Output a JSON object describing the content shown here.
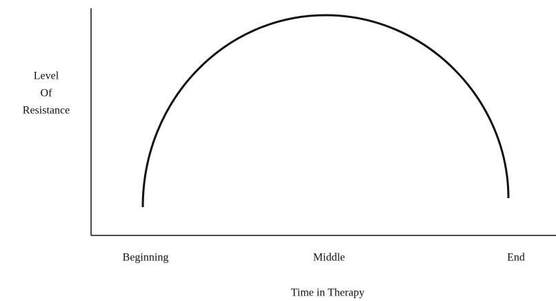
{
  "y_axis_label": [
    "Level",
    "Of",
    "Resistance"
  ],
  "x_categories": [
    "Beginning",
    "Middle",
    "End"
  ],
  "x_axis_label": "Time in Therapy"
}
